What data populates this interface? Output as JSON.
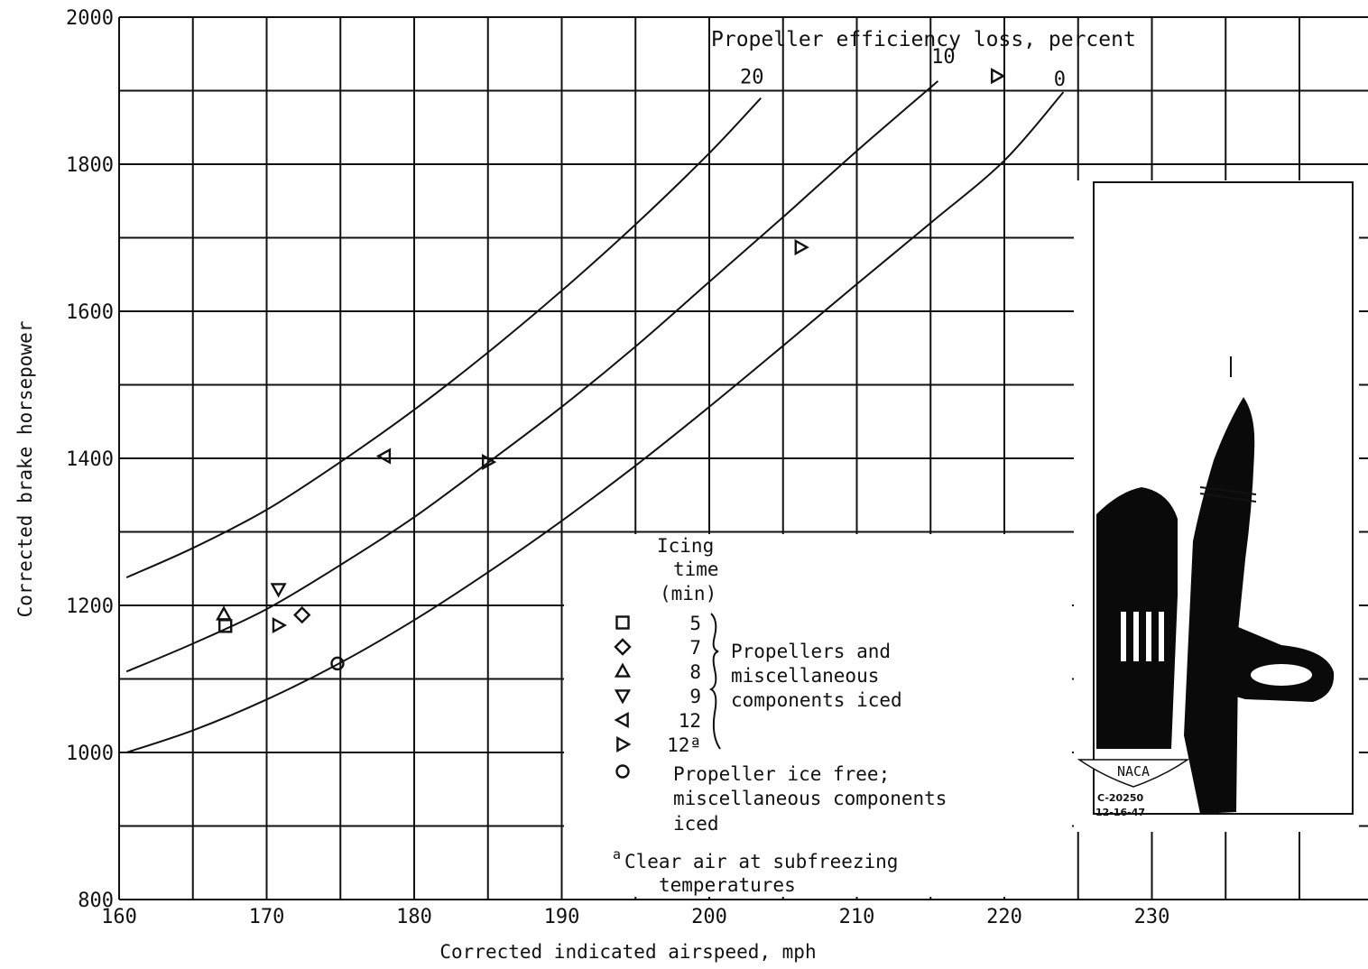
{
  "chart_data": {
    "type": "line",
    "xlabel": "Corrected indicated airspeed, mph",
    "ylabel": "Corrected brake horsepower",
    "xlim": [
      160,
      236
    ],
    "ylim": [
      800,
      2000
    ],
    "x_ticks": [
      160,
      170,
      180,
      190,
      200,
      210,
      220,
      230
    ],
    "y_ticks": [
      800,
      1000,
      1200,
      1400,
      1600,
      1800,
      2000
    ],
    "grid": true,
    "curve_group_title": "Propeller efficiency loss, percent",
    "series": [
      {
        "label": "20",
        "x": [
          160.5,
          165,
          170,
          175,
          180,
          185,
          190,
          195,
          200,
          203.5
        ],
        "y": [
          1238,
          1278,
          1330,
          1395,
          1466,
          1544,
          1628,
          1718,
          1815,
          1890
        ]
      },
      {
        "label": "10",
        "x": [
          160.5,
          165,
          170,
          175,
          180,
          185,
          190,
          195,
          200,
          205,
          210,
          215.5
        ],
        "y": [
          1110,
          1148,
          1195,
          1255,
          1320,
          1394,
          1470,
          1552,
          1640,
          1728,
          1818,
          1913
        ]
      },
      {
        "label": "0",
        "x": [
          160.5,
          165,
          170,
          175,
          180,
          185,
          190,
          195,
          200,
          205,
          210,
          215,
          220,
          224
        ],
        "y": [
          1000,
          1030,
          1072,
          1122,
          1180,
          1245,
          1315,
          1390,
          1470,
          1553,
          1637,
          1720,
          1805,
          1898
        ]
      }
    ],
    "points": [
      {
        "symbol": "square",
        "x": 167.2,
        "y": 1172
      },
      {
        "symbol": "diamond",
        "x": 172.4,
        "y": 1187
      },
      {
        "symbol": "triangle-up",
        "x": 167.1,
        "y": 1188
      },
      {
        "symbol": "triangle-down",
        "x": 170.8,
        "y": 1222
      },
      {
        "symbol": "triangle-left",
        "x": 178,
        "y": 1403
      },
      {
        "symbol": "triangle-right",
        "x": 170.8,
        "y": 1173
      },
      {
        "symbol": "triangle-right",
        "x": 185,
        "y": 1395
      },
      {
        "symbol": "triangle-right",
        "x": 206.2,
        "y": 1687
      },
      {
        "symbol": "triangle-right",
        "x": 219.5,
        "y": 1920
      },
      {
        "symbol": "circle",
        "x": 174.8,
        "y": 1121
      }
    ],
    "legend": {
      "header": [
        "Icing",
        "time",
        "(min)"
      ],
      "entries": [
        {
          "symbol": "square",
          "time": "5"
        },
        {
          "symbol": "diamond",
          "time": "7"
        },
        {
          "symbol": "triangle-up",
          "time": "8"
        },
        {
          "symbol": "triangle-down",
          "time": "9"
        },
        {
          "symbol": "triangle-left",
          "time": "12"
        },
        {
          "symbol": "triangle-right",
          "time": "12ª"
        },
        {
          "symbol": "circle",
          "time": ""
        }
      ],
      "group_label": [
        "Propellers and",
        "miscellaneous",
        "components iced"
      ],
      "ice_free_label": [
        "Propeller ice free;",
        "miscellaneous components",
        "iced"
      ],
      "footnote_mark": "a",
      "footnote": [
        "Clear air at subfreezing",
        "temperatures"
      ]
    }
  },
  "photo": {
    "logo": "NACA",
    "id": "C-20250",
    "date": "12-16-47"
  }
}
